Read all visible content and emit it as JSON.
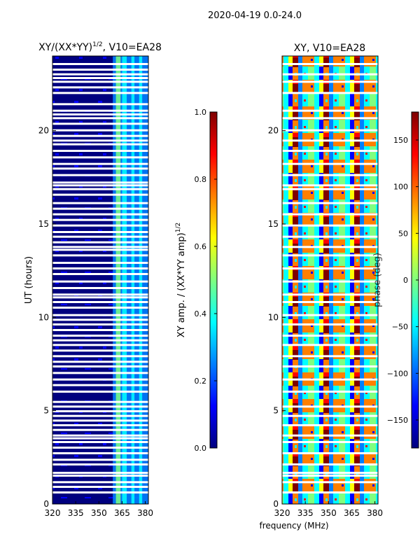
{
  "header": {
    "suptitle": "2020-04-19 0.0-24.0"
  },
  "colors": {
    "jet": [
      "#00007f",
      "#0000ff",
      "#007fff",
      "#00ffff",
      "#7fff7f",
      "#ffff00",
      "#ff7f00",
      "#ff0000",
      "#7f0000"
    ],
    "gap": "#ffffff"
  },
  "chart_data": [
    {
      "type": "heatmap",
      "title": "XY/(XX*YY)",
      "title_sup": "1/2",
      "title_suffix": ", V10=EA28",
      "xlabel": "",
      "ylabel": "UT (hours)",
      "xlim": [
        320,
        382
      ],
      "ylim": [
        0,
        24
      ],
      "xticks": [
        320,
        335,
        350,
        365,
        380
      ],
      "yticks": [
        0,
        5,
        10,
        15,
        20
      ],
      "flagged_hours": [
        0.6,
        0.9,
        1.15,
        1.5,
        1.65,
        2.1,
        2.35,
        2.7,
        3.0,
        3.3,
        3.5,
        3.65,
        3.95,
        4.2,
        4.45,
        4.7,
        4.95,
        5.2,
        5.45,
        6.0,
        6.35,
        6.65,
        7.0,
        7.35,
        7.6,
        7.9,
        8.2,
        8.5,
        8.75,
        9.0,
        9.3,
        9.6,
        9.85,
        10.1,
        10.5,
        10.8,
        11.05,
        11.2,
        11.55,
        11.9,
        12.3,
        12.6,
        12.9,
        13.3,
        13.6,
        13.75,
        14.0,
        14.3,
        14.55,
        14.9,
        15.2,
        15.5,
        15.8,
        16.1,
        16.55,
        16.85,
        17.05,
        17.2,
        17.6,
        17.95,
        18.2,
        18.55,
        18.9,
        19.25,
        19.45,
        19.7,
        20.0,
        20.35,
        20.65,
        20.85,
        21.05,
        21.4,
        22.0,
        22.3,
        22.6,
        22.8,
        23.0,
        23.25,
        23.55
      ],
      "colorbar": {
        "label_main": "XY amp. / (XX*YY amp)",
        "label_sup": "1/2",
        "min": 0.0,
        "max": 1.0,
        "ticks": [
          "0.0",
          "0.2",
          "0.4",
          "0.6",
          "0.8",
          "1.0"
        ]
      }
    },
    {
      "type": "heatmap",
      "title": "XY, V10=EA28",
      "xlabel": "frequency (MHz)",
      "ylabel": "",
      "xlim": [
        320,
        382
      ],
      "ylim": [
        0,
        24
      ],
      "xticks": [
        320,
        335,
        350,
        365,
        380
      ],
      "yticks": [
        0,
        5,
        10,
        15,
        20
      ],
      "flagged_hours": [
        0.6,
        1.15,
        1.5,
        1.65,
        2.1,
        2.7,
        3.3,
        3.65,
        4.2,
        4.7,
        5.2,
        6.0,
        6.65,
        7.35,
        7.9,
        8.5,
        9.0,
        9.6,
        10.1,
        10.8,
        11.2,
        11.9,
        12.6,
        13.3,
        13.75,
        14.3,
        14.9,
        15.5,
        16.1,
        16.85,
        17.05,
        17.6,
        18.2,
        18.9,
        19.45,
        20.0,
        20.65,
        21.05,
        22.0,
        22.6,
        23.0,
        23.55
      ],
      "colorbar": {
        "label": "phase (deg)",
        "min": -180,
        "max": 180,
        "ticks": [
          "−150",
          "−100",
          "−50",
          "0",
          "50",
          "100",
          "150"
        ],
        "tick_values": [
          -150,
          -100,
          -50,
          0,
          50,
          100,
          150
        ]
      }
    }
  ]
}
